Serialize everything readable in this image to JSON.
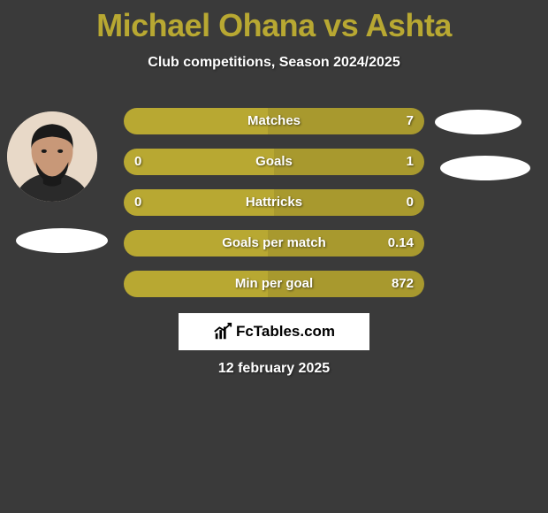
{
  "title": "Michael Ohana vs Ashta",
  "subtitle": "Club competitions, Season 2024/2025",
  "date": "12 february 2025",
  "logo_text": "FcTables.com",
  "colors": {
    "accent": "#b8a832",
    "accent_dark": "#a8992e",
    "background": "#3a3a3a",
    "text": "#ffffff"
  },
  "stats": [
    {
      "label": "Matches",
      "left_val": "",
      "right_val": "7",
      "left_pct": 48,
      "right_pct": 52
    },
    {
      "label": "Goals",
      "left_val": "0",
      "right_val": "1",
      "left_pct": 50,
      "right_pct": 50
    },
    {
      "label": "Hattricks",
      "left_val": "0",
      "right_val": "0",
      "left_pct": 50,
      "right_pct": 50
    },
    {
      "label": "Goals per match",
      "left_val": "",
      "right_val": "0.14",
      "left_pct": 48,
      "right_pct": 52
    },
    {
      "label": "Min per goal",
      "left_val": "",
      "right_val": "872",
      "left_pct": 48,
      "right_pct": 52
    }
  ]
}
